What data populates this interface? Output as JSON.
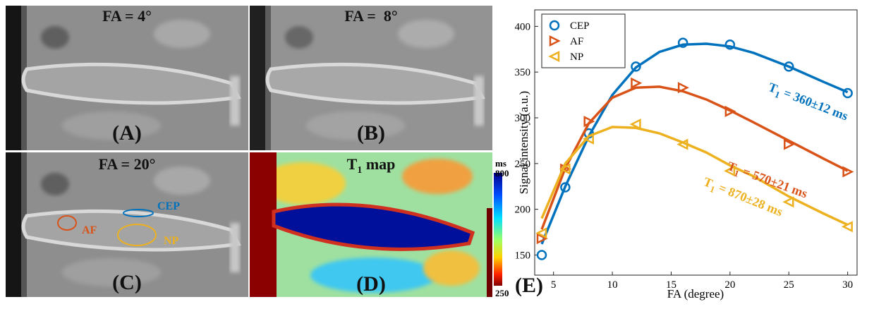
{
  "panels": [
    {
      "title": "FA = 4°",
      "label": "(A)"
    },
    {
      "title": "FA =  8°",
      "label": "(B)"
    },
    {
      "title": "FA = 20°",
      "label": "(C)",
      "rois": [
        "CEP",
        "AF",
        "NP"
      ]
    },
    {
      "title": {
        "symbol": "T",
        "subscript": "1",
        "text": " map"
      },
      "label": "(D)",
      "colorbar": {
        "unit": "ms",
        "max": 800,
        "min": 250
      }
    }
  ],
  "chart_data": {
    "type": "scatter",
    "label": "(E)",
    "x_label": "FA (degree)",
    "y_label": "Signal intensity (a.u.)",
    "x": [
      4,
      6,
      8,
      12,
      16,
      20,
      25,
      30
    ],
    "fit_x": [
      4,
      6,
      8,
      10,
      12,
      14,
      16,
      18,
      20,
      22,
      25,
      28,
      30
    ],
    "series": [
      {
        "name": "CEP",
        "color": "#0072bd",
        "marker": "circle",
        "values": [
          150,
          224,
          283,
          356,
          382,
          380,
          356,
          327
        ],
        "fit": [
          162,
          225,
          280,
          325,
          355,
          372,
          380,
          381,
          378,
          371,
          356,
          339,
          328
        ]
      },
      {
        "name": "AF",
        "color": "#d95319",
        "marker": "triangle-right",
        "values": [
          168,
          244,
          296,
          338,
          333,
          307,
          271,
          241
        ],
        "fit": [
          178,
          245,
          294,
          322,
          333,
          334,
          329,
          320,
          308,
          295,
          275,
          255,
          242
        ]
      },
      {
        "name": "NP",
        "color": "#edb120",
        "marker": "triangle-left",
        "values": [
          174,
          244,
          277,
          293,
          271,
          242,
          208,
          181
        ],
        "fit": [
          190,
          250,
          280,
          290,
          289,
          283,
          273,
          262,
          248,
          236,
          214,
          195,
          183
        ]
      }
    ],
    "annotations": [
      {
        "symbol": "T",
        "subscript": "1",
        "text": " = 360±12 ms",
        "color": "#0072bd"
      },
      {
        "symbol": "T",
        "subscript": "1",
        "text": " = 570±21 ms",
        "color": "#d95319"
      },
      {
        "symbol": "T",
        "subscript": "1",
        "text": " = 870±28 ms",
        "color": "#edb120"
      }
    ],
    "xlim": [
      3.4,
      30.8
    ],
    "ylim": [
      128,
      418
    ],
    "xticks": [
      5,
      10,
      15,
      20,
      25,
      30
    ],
    "yticks": [
      150,
      200,
      250,
      300,
      350,
      400
    ],
    "legend": "upper left"
  }
}
